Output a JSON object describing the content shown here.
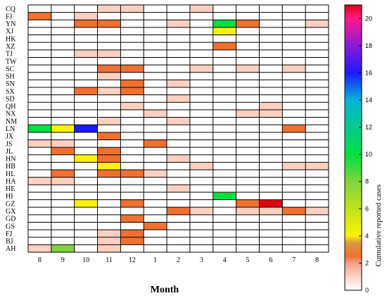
{
  "chart_data": {
    "type": "heatmap",
    "xlabel": "Month",
    "ylabel": "",
    "colorbar_label": "Cumulative reported cases",
    "x_categories": [
      "8",
      "9",
      "10",
      "11",
      "12",
      "1",
      "2",
      "3",
      "4",
      "5",
      "6",
      "7",
      "8"
    ],
    "y_categories": [
      "CQ",
      "FJ",
      "YN",
      "XJ",
      "HK",
      "XZ",
      "TJ",
      "TW",
      "SC",
      "SH",
      "SN",
      "SX",
      "SD",
      "QH",
      "NX",
      "NM",
      "LN",
      "JX",
      "JS",
      "JL",
      "HN",
      "HB",
      "HL",
      "HA",
      "HE",
      "HI",
      "GZ",
      "GX",
      "GD",
      "GS",
      "FJ",
      "BJ",
      "AH"
    ],
    "colorbar_range": [
      0,
      21
    ],
    "colorbar_ticks": [
      0,
      2,
      4,
      6,
      8,
      10,
      12,
      14,
      16,
      18,
      20
    ],
    "grid": true,
    "values": [
      [
        0,
        0,
        0,
        1,
        1,
        0,
        0,
        1,
        0,
        0,
        0,
        0,
        0
      ],
      [
        2,
        0,
        1,
        0,
        0,
        0,
        0,
        0,
        0,
        0,
        0,
        0,
        0
      ],
      [
        0,
        0,
        2,
        2,
        0,
        0,
        1,
        0,
        10,
        2,
        0,
        0,
        1
      ],
      [
        0,
        0,
        0,
        0,
        0,
        0,
        0,
        0,
        4,
        0,
        0,
        0,
        0
      ],
      [
        0,
        0,
        0,
        0,
        0,
        0,
        0,
        0,
        0,
        0,
        0,
        0,
        0
      ],
      [
        0,
        0,
        0,
        0,
        0,
        0,
        0,
        0,
        2,
        0,
        0,
        0,
        0
      ],
      [
        0,
        0,
        1,
        1,
        0,
        0,
        0,
        0,
        0,
        0,
        0,
        0,
        0
      ],
      [
        0,
        0,
        0,
        0,
        0,
        0,
        0,
        0,
        0,
        0,
        0,
        0,
        0
      ],
      [
        0,
        0,
        0,
        2,
        2,
        0,
        0,
        1,
        0,
        1,
        0,
        1,
        0
      ],
      [
        0,
        0,
        0,
        1,
        0,
        0,
        0,
        0,
        0,
        0,
        0,
        0,
        0
      ],
      [
        0,
        0,
        0,
        0,
        2,
        0,
        1,
        0,
        0,
        0,
        0,
        0,
        0
      ],
      [
        0,
        0,
        2,
        1,
        2,
        0,
        0,
        0,
        0,
        0,
        0,
        0,
        0
      ],
      [
        0,
        0,
        0,
        0,
        0,
        0,
        1,
        0,
        0,
        0,
        0,
        0,
        0
      ],
      [
        0,
        0,
        0,
        0,
        1,
        0,
        0,
        0,
        0,
        0,
        1,
        0,
        0
      ],
      [
        0,
        0,
        0,
        0,
        0,
        1,
        0,
        0,
        0,
        1,
        1,
        0,
        0
      ],
      [
        0,
        0,
        0,
        1,
        0,
        0,
        1,
        0,
        0,
        0,
        0,
        0,
        0
      ],
      [
        10,
        4,
        16,
        0,
        0,
        0,
        0,
        0,
        0,
        0,
        0,
        2,
        0
      ],
      [
        0,
        0,
        0,
        2,
        0,
        0,
        0,
        0,
        0,
        0,
        0,
        0,
        0
      ],
      [
        1,
        1,
        0,
        0,
        0,
        2,
        0,
        0,
        0,
        0,
        0,
        0,
        0
      ],
      [
        0,
        2,
        0,
        2,
        0,
        0,
        0,
        0,
        0,
        0,
        0,
        0,
        0
      ],
      [
        0,
        0,
        4,
        2,
        0,
        0,
        1,
        0,
        0,
        0,
        0,
        0,
        0
      ],
      [
        0,
        0,
        0,
        4,
        0,
        0,
        0,
        1,
        0,
        0,
        0,
        1,
        1
      ],
      [
        0,
        2,
        0,
        2,
        2,
        1,
        0,
        0,
        0,
        0,
        0,
        0,
        0
      ],
      [
        1,
        1,
        0,
        0,
        0,
        0,
        0,
        0,
        0,
        0,
        0,
        0,
        0
      ],
      [
        0,
        0,
        0,
        0,
        0,
        0,
        1,
        0,
        0,
        0,
        0,
        0,
        0
      ],
      [
        0,
        0,
        0,
        0,
        0,
        0,
        0,
        0,
        10,
        0,
        0,
        0,
        0
      ],
      [
        0,
        0,
        4,
        0,
        2,
        0,
        0,
        0,
        0,
        2,
        21,
        0,
        0
      ],
      [
        0,
        0,
        0,
        0,
        0,
        0,
        2,
        1,
        0,
        1,
        1,
        2,
        1
      ],
      [
        0,
        0,
        0,
        0,
        2,
        0,
        0,
        0,
        0,
        0,
        0,
        0,
        0
      ],
      [
        0,
        0,
        0,
        0,
        0,
        2,
        0,
        0,
        0,
        0,
        0,
        0,
        0
      ],
      [
        0,
        0,
        0,
        1,
        2,
        0,
        0,
        0,
        0,
        0,
        0,
        0,
        0
      ],
      [
        0,
        0,
        0,
        1,
        2,
        0,
        0,
        0,
        0,
        0,
        0,
        0,
        0
      ],
      [
        1,
        8,
        0,
        1,
        0,
        0,
        0,
        0,
        0,
        0,
        0,
        0,
        0
      ]
    ]
  }
}
